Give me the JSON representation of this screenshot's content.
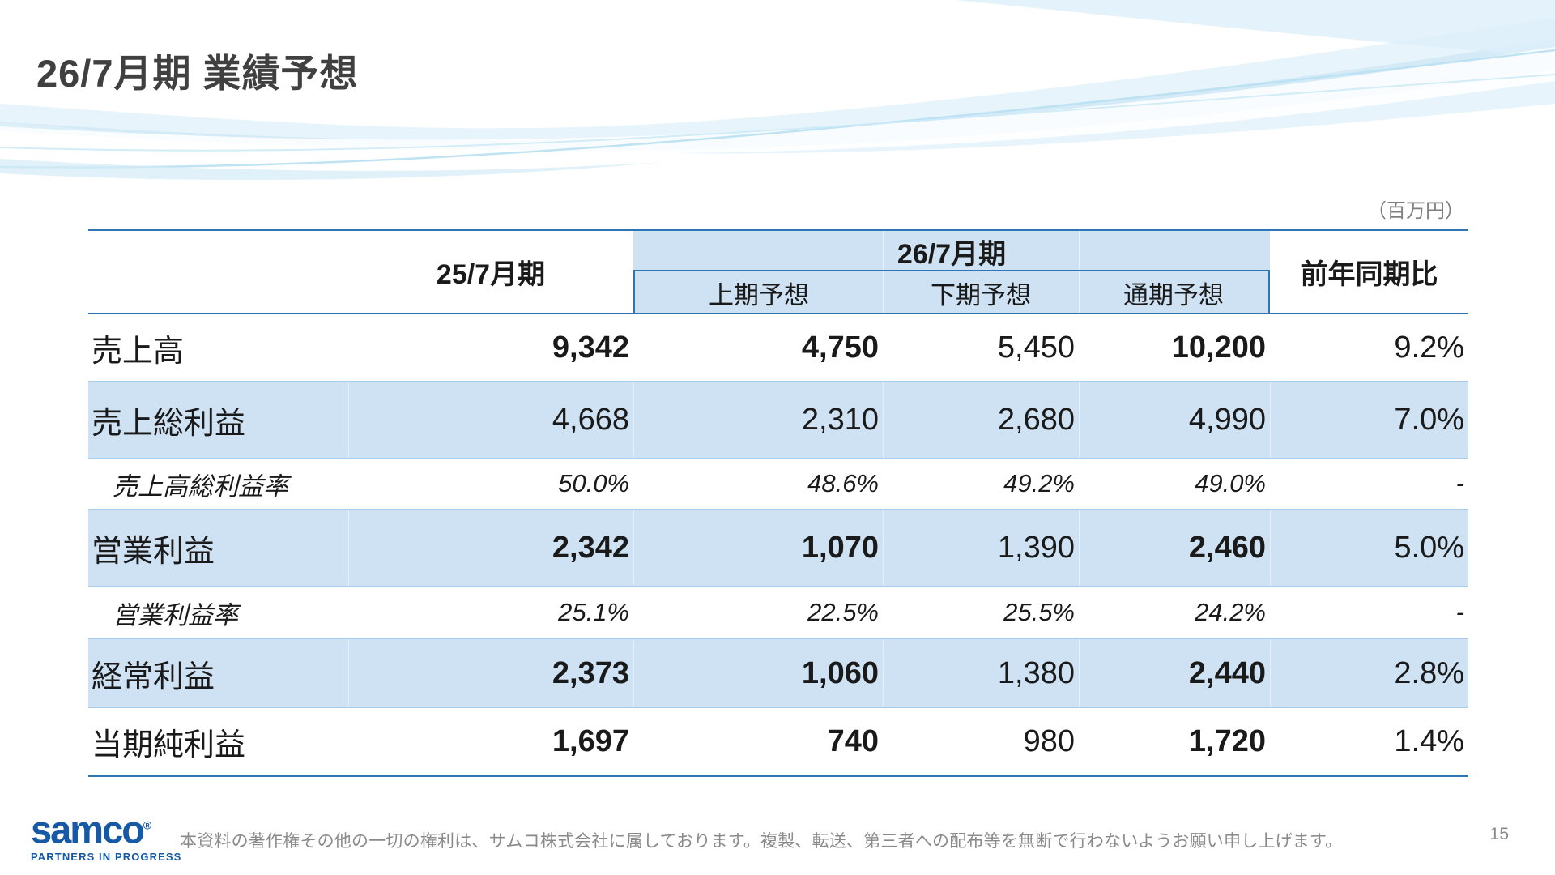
{
  "slide": {
    "title": "26/7月期 業績予想",
    "unit_note": "（百万円）",
    "page_number": "15",
    "disclaimer": "本資料の著作権その他の一切の権利は、サムコ株式会社に属しております。複製、転送、第三者への配布等を無断で行わないようお願い申し上げます。",
    "logo": {
      "wordmark": "samco",
      "registered": "®",
      "tagline": "PARTNERS IN PROGRESS"
    }
  },
  "table": {
    "col_headers": {
      "prior_period": "25/7月期",
      "current_period": "26/7月期",
      "sub_headers": [
        "上期予想",
        "下期予想",
        "通期予想"
      ],
      "yoy": "前年同期比"
    },
    "rows": [
      {
        "label": "売上高",
        "type": "main",
        "shaded": false,
        "values": [
          "9,342",
          "4,750",
          "5,450",
          "10,200",
          "9.2%"
        ],
        "bold": [
          true,
          true,
          false,
          true,
          false
        ]
      },
      {
        "label": "売上総利益",
        "type": "main",
        "shaded": true,
        "values": [
          "4,668",
          "2,310",
          "2,680",
          "4,990",
          "7.0%"
        ],
        "bold": [
          false,
          false,
          false,
          false,
          false
        ]
      },
      {
        "label": "売上高総利益率",
        "type": "ratio",
        "shaded": false,
        "values": [
          "50.0%",
          "48.6%",
          "49.2%",
          "49.0%",
          "-"
        ],
        "bold": [
          false,
          false,
          false,
          false,
          false
        ]
      },
      {
        "label": "営業利益",
        "type": "main",
        "shaded": true,
        "values": [
          "2,342",
          "1,070",
          "1,390",
          "2,460",
          "5.0%"
        ],
        "bold": [
          true,
          true,
          false,
          true,
          false
        ]
      },
      {
        "label": "営業利益率",
        "type": "ratio",
        "shaded": false,
        "values": [
          "25.1%",
          "22.5%",
          "25.5%",
          "24.2%",
          "-"
        ],
        "bold": [
          false,
          false,
          false,
          false,
          false
        ]
      },
      {
        "label": "経常利益",
        "type": "main",
        "shaded": true,
        "values": [
          "2,373",
          "1,060",
          "1,380",
          "2,440",
          "2.8%"
        ],
        "bold": [
          true,
          true,
          false,
          true,
          false
        ]
      },
      {
        "label": "当期純利益",
        "type": "main",
        "shaded": false,
        "values": [
          "1,697",
          "740",
          "980",
          "1,720",
          "1.4%"
        ],
        "bold": [
          true,
          true,
          false,
          true,
          false
        ]
      }
    ]
  },
  "colors": {
    "accent_border_blue": "#2e75b6",
    "row_shade_blue": "#cfe2f3",
    "thin_separator_blue": "#aacce9",
    "title_gray": "#404040",
    "note_gray": "#7f7f7f",
    "logo_blue": "#1659a5"
  }
}
